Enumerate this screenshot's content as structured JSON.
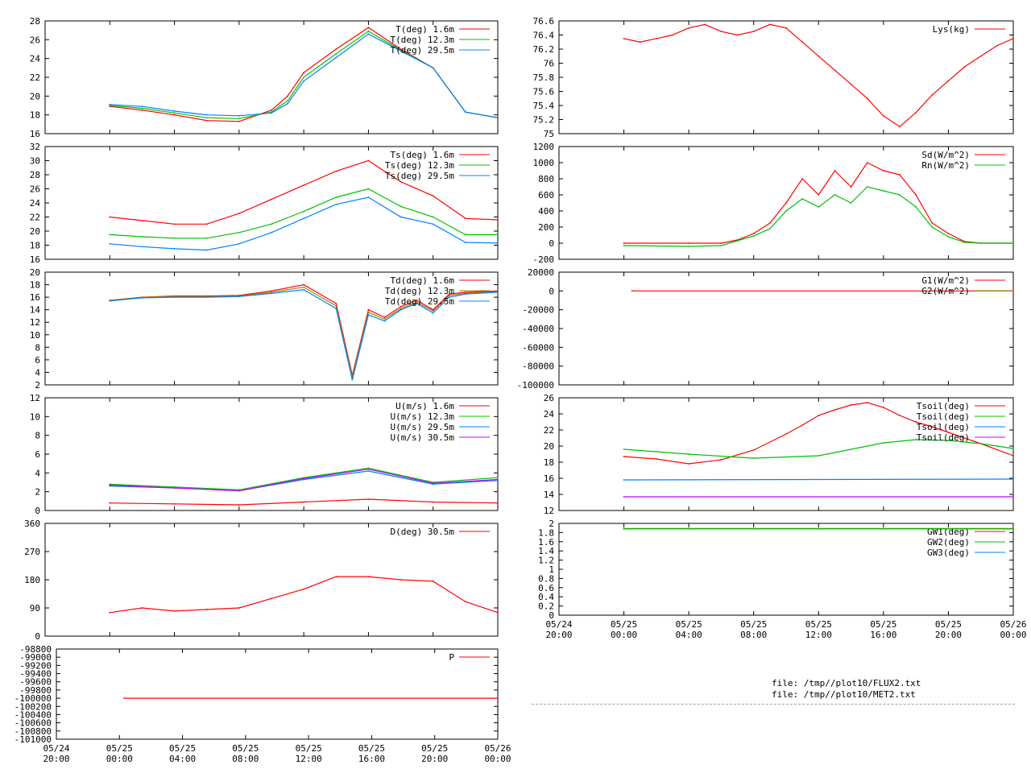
{
  "colors": {
    "red": "#ff0000",
    "green": "#00c000",
    "blue": "#0080ff",
    "purple": "#c000ff",
    "olive": "#a08000",
    "axis": "#000000",
    "separator": "#a0a0a0"
  },
  "files": [
    "file: /tmp//plot10/FLUX2.txt",
    "file: /tmp//plot10/MET2.txt"
  ],
  "time_axis": {
    "range_hours": [
      0,
      28
    ],
    "tick_hours": [
      0,
      4,
      8,
      12,
      16,
      20,
      24,
      28
    ],
    "tick_labels": [
      [
        "05/24",
        "20:00"
      ],
      [
        "05/25",
        "00:00"
      ],
      [
        "05/25",
        "04:00"
      ],
      [
        "05/25",
        "08:00"
      ],
      [
        "05/25",
        "12:00"
      ],
      [
        "05/25",
        "16:00"
      ],
      [
        "05/25",
        "20:00"
      ],
      [
        "05/26",
        "00:00"
      ]
    ]
  },
  "chart_data": [
    {
      "id": "temp",
      "type": "line",
      "ylim": [
        16,
        28
      ],
      "yticks": [
        16,
        18,
        20,
        22,
        24,
        26,
        28
      ],
      "legend_position": "top-right",
      "series": [
        {
          "name": "T(deg)  1.6m",
          "color": "red",
          "x": [
            4,
            6,
            8,
            10,
            12,
            14,
            15,
            16,
            18,
            20,
            22,
            24,
            26,
            28
          ],
          "y": [
            18.9,
            18.5,
            18.0,
            17.4,
            17.3,
            18.5,
            20.0,
            22.5,
            25.0,
            27.3,
            25.0,
            23.0,
            18.3,
            17.7
          ]
        },
        {
          "name": "T(deg) 12.3m",
          "color": "green",
          "x": [
            4,
            6,
            8,
            10,
            12,
            14,
            15,
            16,
            18,
            20,
            22,
            24,
            26,
            28
          ],
          "y": [
            19.0,
            18.7,
            18.2,
            17.7,
            17.6,
            18.3,
            19.5,
            22.0,
            24.5,
            26.9,
            24.9,
            23.0,
            18.3,
            17.7
          ]
        },
        {
          "name": "T(deg) 29.5m",
          "color": "blue",
          "x": [
            4,
            6,
            8,
            10,
            12,
            14,
            15,
            16,
            18,
            20,
            22,
            24,
            26,
            28
          ],
          "y": [
            19.1,
            18.9,
            18.4,
            18.0,
            17.9,
            18.2,
            19.2,
            21.6,
            24.1,
            26.6,
            24.8,
            23.0,
            18.3,
            17.7
          ]
        }
      ]
    },
    {
      "id": "surface_temp",
      "type": "line",
      "ylim": [
        16,
        32
      ],
      "yticks": [
        16,
        18,
        20,
        22,
        24,
        26,
        28,
        30,
        32
      ],
      "legend_position": "top-right",
      "series": [
        {
          "name": "Ts(deg)  1.6m",
          "color": "red",
          "x": [
            4,
            6,
            8,
            10,
            12,
            14,
            16,
            18,
            20,
            22,
            24,
            26,
            28
          ],
          "y": [
            22.0,
            21.5,
            21.0,
            21.0,
            22.5,
            24.5,
            26.5,
            28.5,
            30.0,
            27.0,
            25.0,
            21.8,
            21.6
          ]
        },
        {
          "name": "Ts(deg) 12.3m",
          "color": "green",
          "x": [
            4,
            6,
            8,
            10,
            12,
            14,
            16,
            18,
            20,
            22,
            24,
            26,
            28
          ],
          "y": [
            19.5,
            19.2,
            19.0,
            19.0,
            19.8,
            21.0,
            22.8,
            24.8,
            26.0,
            23.5,
            22.0,
            19.5,
            19.5
          ]
        },
        {
          "name": "Ts(deg) 29.5m",
          "color": "blue",
          "x": [
            4,
            6,
            8,
            10,
            12,
            14,
            16,
            18,
            20,
            22,
            24,
            26,
            28
          ],
          "y": [
            18.2,
            17.8,
            17.5,
            17.3,
            18.2,
            19.8,
            21.8,
            23.8,
            24.8,
            22.0,
            21.0,
            18.4,
            18.3
          ]
        }
      ]
    },
    {
      "id": "dewpoint",
      "type": "line",
      "ylim": [
        2,
        20
      ],
      "yticks": [
        2,
        4,
        6,
        8,
        10,
        12,
        14,
        16,
        18,
        20
      ],
      "legend_position": "top-right",
      "series": [
        {
          "name": "Td(deg)  1.6m",
          "color": "red",
          "x": [
            4,
            6,
            8,
            10,
            12,
            14,
            16,
            18,
            19,
            20,
            21,
            22,
            23,
            24,
            25,
            26,
            28
          ],
          "y": [
            15.5,
            16.0,
            16.2,
            16.2,
            16.3,
            17.0,
            18.0,
            15.0,
            3.5,
            14.0,
            12.8,
            14.5,
            15.5,
            14.0,
            16.5,
            16.8,
            17.0
          ]
        },
        {
          "name": "Td(deg) 12.3m",
          "color": "olive",
          "x": [
            4,
            6,
            8,
            10,
            12,
            14,
            16,
            18,
            19,
            20,
            21,
            22,
            23,
            24,
            25,
            26,
            28
          ],
          "y": [
            15.5,
            16.0,
            16.1,
            16.1,
            16.2,
            16.8,
            17.6,
            14.6,
            3.2,
            13.6,
            12.5,
            14.2,
            15.2,
            13.8,
            16.3,
            16.6,
            16.9
          ]
        },
        {
          "name": "Td(deg) 29.5m",
          "color": "blue",
          "x": [
            4,
            6,
            8,
            10,
            12,
            14,
            16,
            18,
            19,
            20,
            21,
            22,
            23,
            24,
            25,
            26,
            28
          ],
          "y": [
            15.4,
            15.9,
            16.0,
            16.0,
            16.1,
            16.6,
            17.2,
            14.2,
            2.8,
            13.2,
            12.2,
            14.0,
            15.0,
            13.5,
            16.0,
            16.5,
            16.8
          ]
        }
      ]
    },
    {
      "id": "wind_speed",
      "type": "line",
      "ylim": [
        0,
        12
      ],
      "yticks": [
        0,
        2,
        4,
        6,
        8,
        10,
        12
      ],
      "legend_position": "top-right",
      "series": [
        {
          "name": "U(m/s)  1.6m",
          "color": "red",
          "x": [
            4,
            8,
            12,
            16,
            20,
            24,
            28
          ],
          "y": [
            0.8,
            0.7,
            0.6,
            0.9,
            1.2,
            0.9,
            0.8
          ]
        },
        {
          "name": "U(m/s) 12.3m",
          "color": "green",
          "x": [
            4,
            8,
            12,
            16,
            20,
            24,
            28
          ],
          "y": [
            2.8,
            2.5,
            2.2,
            3.5,
            4.5,
            3.0,
            3.5
          ]
        },
        {
          "name": "U(m/s) 29.5m",
          "color": "blue",
          "x": [
            4,
            8,
            12,
            16,
            20,
            24,
            28
          ],
          "y": [
            2.6,
            2.4,
            2.1,
            3.3,
            4.2,
            2.8,
            3.2
          ]
        },
        {
          "name": "U(m/s) 30.5m",
          "color": "purple",
          "x": [
            4,
            8,
            12,
            16,
            20,
            24,
            28
          ],
          "y": [
            2.7,
            2.4,
            2.1,
            3.4,
            4.4,
            2.9,
            3.3
          ]
        }
      ]
    },
    {
      "id": "wind_dir",
      "type": "line",
      "ylim": [
        0,
        360
      ],
      "yticks": [
        0,
        90,
        180,
        270,
        360
      ],
      "legend_position": "top-right",
      "series": [
        {
          "name": "D(deg)  30.5m",
          "color": "red",
          "x": [
            4,
            6,
            8,
            10,
            12,
            14,
            16,
            18,
            20,
            22,
            24,
            26,
            28
          ],
          "y": [
            75,
            90,
            80,
            85,
            90,
            120,
            150,
            190,
            190,
            180,
            175,
            110,
            75
          ]
        }
      ]
    },
    {
      "id": "pressure",
      "type": "line",
      "ylim": [
        -101000,
        -98800
      ],
      "yticks": [
        -101000,
        -100800,
        -100600,
        -100400,
        -100200,
        -100000,
        -99800,
        -99600,
        -99400,
        -99200,
        -99000,
        -98800
      ],
      "legend_position": "top-right",
      "series": [
        {
          "name": "P",
          "color": "red",
          "x": [
            4.3,
            28
          ],
          "y": [
            -100000,
            -100000
          ]
        }
      ]
    },
    {
      "id": "lysimeter",
      "type": "line",
      "ylim": [
        75,
        76.6
      ],
      "yticks": [
        75,
        75.2,
        75.4,
        75.6,
        75.8,
        76,
        76.2,
        76.4,
        76.6
      ],
      "legend_position": "top-right",
      "series": [
        {
          "name": "Lys(kg)",
          "color": "red",
          "x": [
            4,
            5,
            6,
            7,
            8,
            9,
            10,
            11,
            12,
            13,
            14,
            15,
            16,
            17,
            18,
            19,
            20,
            21,
            22,
            23,
            24,
            25,
            26,
            27,
            28
          ],
          "y": [
            76.35,
            76.3,
            76.35,
            76.4,
            76.5,
            76.55,
            76.45,
            76.4,
            76.45,
            76.55,
            76.5,
            76.3,
            76.1,
            75.9,
            75.7,
            75.5,
            75.25,
            75.1,
            75.3,
            75.55,
            75.75,
            75.95,
            76.1,
            76.25,
            76.35
          ]
        }
      ]
    },
    {
      "id": "radiation",
      "type": "line",
      "ylim": [
        -200,
        1200
      ],
      "yticks": [
        -200,
        0,
        200,
        400,
        600,
        800,
        1000,
        1200
      ],
      "legend_position": "top-right",
      "series": [
        {
          "name": "Sd(W/m^2)",
          "color": "red",
          "x": [
            4,
            8,
            10,
            11,
            12,
            13,
            14,
            15,
            16,
            17,
            18,
            19,
            20,
            21,
            22,
            23,
            24,
            25,
            26,
            28
          ],
          "y": [
            0,
            0,
            0,
            40,
            120,
            250,
            500,
            800,
            600,
            900,
            700,
            1000,
            900,
            850,
            600,
            250,
            120,
            20,
            0,
            0
          ]
        },
        {
          "name": "Rn(W/m^2)",
          "color": "green",
          "x": [
            4,
            8,
            10,
            11,
            12,
            13,
            14,
            15,
            16,
            17,
            18,
            19,
            20,
            21,
            22,
            23,
            24,
            25,
            26,
            28
          ],
          "y": [
            -30,
            -40,
            -30,
            30,
            90,
            180,
            400,
            550,
            450,
            600,
            500,
            700,
            650,
            600,
            450,
            200,
            80,
            10,
            0,
            0
          ]
        }
      ]
    },
    {
      "id": "ground_flux",
      "type": "line",
      "ylim": [
        -100000,
        20000
      ],
      "yticks": [
        -100000,
        -80000,
        -60000,
        -40000,
        -20000,
        0,
        20000
      ],
      "legend_position": "top-right",
      "series": [
        {
          "name": "G1(W/m^2)",
          "color": "red",
          "x": [
            4.5,
            28
          ],
          "y": [
            0,
            0
          ]
        },
        {
          "name": "G2(W/m^2)",
          "color": "olive",
          "x": [
            26,
            28
          ],
          "y": [
            0,
            0
          ]
        }
      ]
    },
    {
      "id": "soil_temp",
      "type": "line",
      "ylim": [
        12,
        26
      ],
      "yticks": [
        12,
        14,
        16,
        18,
        20,
        22,
        24,
        26
      ],
      "legend_position": "top-right",
      "series": [
        {
          "name": "Tsoil(deg)",
          "color": "red",
          "x": [
            4,
            6,
            8,
            10,
            12,
            14,
            15,
            16,
            17,
            18,
            19,
            20,
            21,
            22,
            23,
            24,
            26,
            28
          ],
          "y": [
            18.7,
            18.4,
            17.8,
            18.3,
            19.5,
            21.5,
            22.6,
            23.8,
            24.5,
            25.1,
            25.4,
            24.8,
            23.8,
            23.0,
            22.4,
            21.7,
            20.3,
            18.8
          ]
        },
        {
          "name": "Tsoil(deg)",
          "color": "green",
          "x": [
            4,
            8,
            12,
            16,
            20,
            22,
            24,
            26,
            28
          ],
          "y": [
            19.6,
            19.0,
            18.5,
            18.8,
            20.4,
            20.8,
            20.7,
            20.3,
            19.7
          ]
        },
        {
          "name": "Tsoil(deg)",
          "color": "blue",
          "x": [
            4,
            28
          ],
          "y": [
            15.8,
            15.9
          ]
        },
        {
          "name": "Tsoil(deg)",
          "color": "purple",
          "x": [
            4,
            28
          ],
          "y": [
            13.7,
            13.7
          ]
        }
      ]
    },
    {
      "id": "gw",
      "type": "line",
      "ylim": [
        0,
        2
      ],
      "yticks": [
        0,
        0.2,
        0.4,
        0.6,
        0.8,
        1,
        1.2,
        1.4,
        1.6,
        1.8,
        2
      ],
      "legend_position": "top-right",
      "series": [
        {
          "name": "GW1(deg)",
          "color": "red",
          "x": [
            4,
            28
          ],
          "y": [
            1.88,
            1.88
          ]
        },
        {
          "name": "GW2(deg)",
          "color": "green",
          "x": [
            4,
            28
          ],
          "y": [
            1.89,
            1.89
          ]
        },
        {
          "name": "GW3(deg)",
          "color": "blue",
          "x": [],
          "y": []
        }
      ]
    }
  ]
}
